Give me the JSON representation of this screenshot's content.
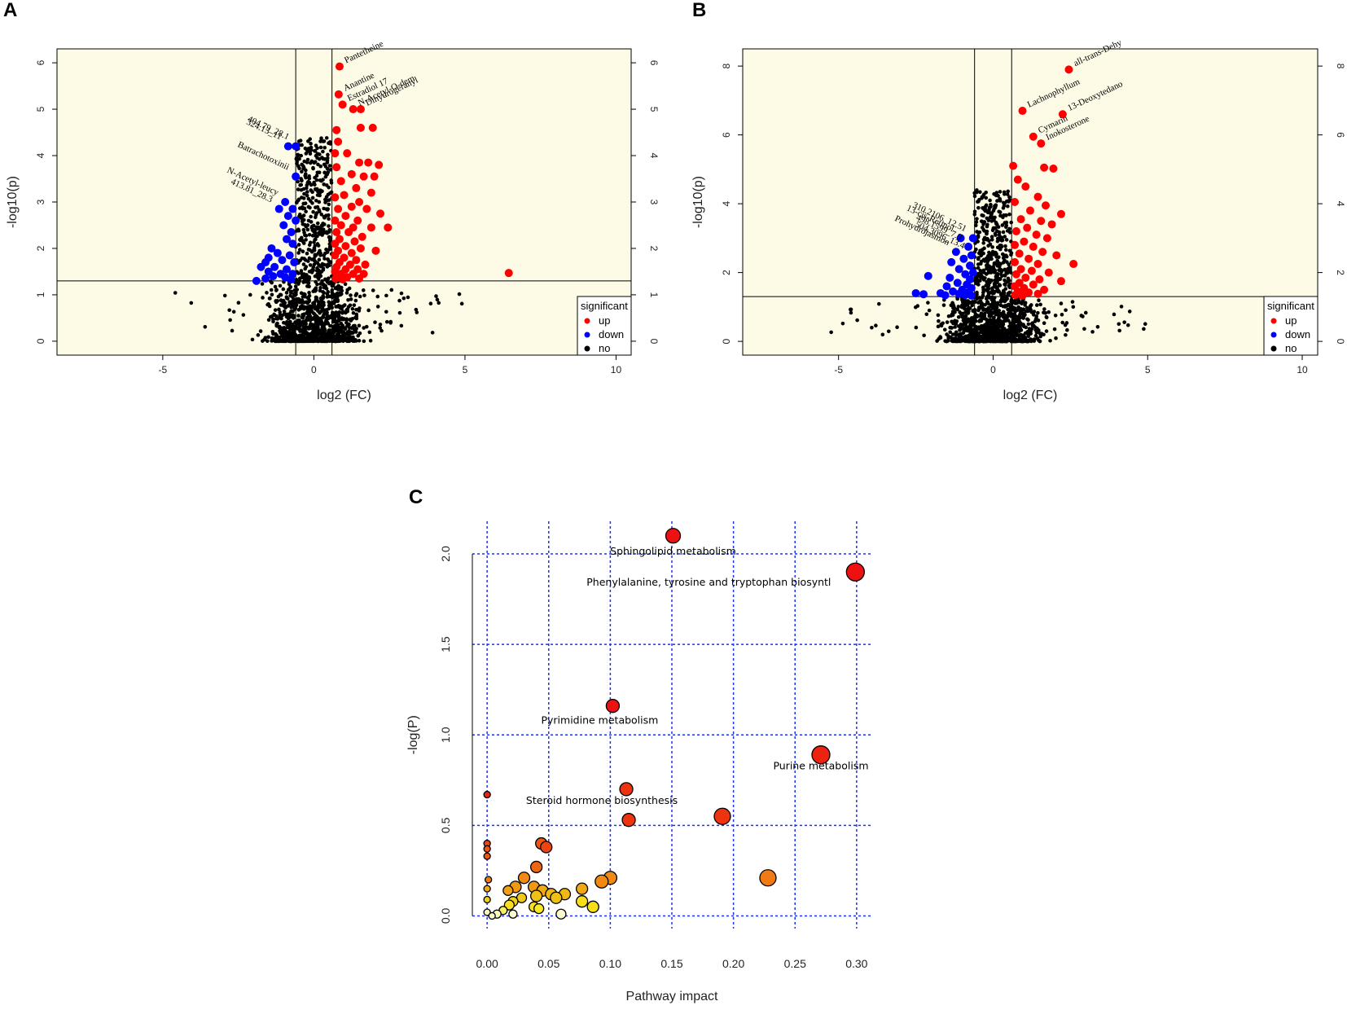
{
  "chart_data": [
    {
      "panel": "A",
      "type": "scatter",
      "xlabel": "log2 (FC)",
      "ylabel": "-log10(p)",
      "xlim": [
        -8.5,
        10.5
      ],
      "ylim": [
        -0.3,
        6.3
      ],
      "xticks": [
        -5,
        0,
        5,
        10
      ],
      "yticks": [
        0,
        1,
        2,
        3,
        4,
        5,
        6
      ],
      "threshold_x": [
        -0.6,
        0.6
      ],
      "threshold_y": 1.3,
      "background": "#fdfbe6",
      "legend": {
        "title": "significant",
        "entries": [
          {
            "label": "up",
            "color": "#ff0000"
          },
          {
            "label": "down",
            "color": "#0000ff"
          },
          {
            "label": "no",
            "color": "#000000"
          }
        ]
      },
      "up_points": [
        [
          0.85,
          5.92
        ],
        [
          0.82,
          5.32
        ],
        [
          0.95,
          5.1
        ],
        [
          1.3,
          5.0
        ],
        [
          1.55,
          5.0
        ],
        [
          1.55,
          4.6
        ],
        [
          1.95,
          4.6
        ],
        [
          0.75,
          4.55
        ],
        [
          0.8,
          4.3
        ],
        [
          0.7,
          4.05
        ],
        [
          1.1,
          4.05
        ],
        [
          1.5,
          3.85
        ],
        [
          1.8,
          3.85
        ],
        [
          2.15,
          3.8
        ],
        [
          0.75,
          3.75
        ],
        [
          1.25,
          3.6
        ],
        [
          1.65,
          3.55
        ],
        [
          2.0,
          3.55
        ],
        [
          0.9,
          3.45
        ],
        [
          1.4,
          3.3
        ],
        [
          1.9,
          3.2
        ],
        [
          1.0,
          3.15
        ],
        [
          0.7,
          3.1
        ],
        [
          1.5,
          3.0
        ],
        [
          1.25,
          2.9
        ],
        [
          0.8,
          2.85
        ],
        [
          1.75,
          2.85
        ],
        [
          2.2,
          2.75
        ],
        [
          1.05,
          2.7
        ],
        [
          0.7,
          2.6
        ],
        [
          1.45,
          2.6
        ],
        [
          0.9,
          2.5
        ],
        [
          1.3,
          2.45
        ],
        [
          1.9,
          2.45
        ],
        [
          2.45,
          2.45
        ],
        [
          0.75,
          2.35
        ],
        [
          1.15,
          2.35
        ],
        [
          1.6,
          2.25
        ],
        [
          0.85,
          2.2
        ],
        [
          1.35,
          2.15
        ],
        [
          0.7,
          2.1
        ],
        [
          1.05,
          2.05
        ],
        [
          1.55,
          2.0
        ],
        [
          2.05,
          1.95
        ],
        [
          0.8,
          1.95
        ],
        [
          1.25,
          1.9
        ],
        [
          0.7,
          1.85
        ],
        [
          1.0,
          1.8
        ],
        [
          1.4,
          1.75
        ],
        [
          0.85,
          1.7
        ],
        [
          1.2,
          1.65
        ],
        [
          1.7,
          1.65
        ],
        [
          0.75,
          1.6
        ],
        [
          1.05,
          1.55
        ],
        [
          1.45,
          1.55
        ],
        [
          0.7,
          1.5
        ],
        [
          0.9,
          1.45
        ],
        [
          1.3,
          1.45
        ],
        [
          1.65,
          1.45
        ],
        [
          0.8,
          1.4
        ],
        [
          1.1,
          1.38
        ],
        [
          1.5,
          1.35
        ],
        [
          0.72,
          1.35
        ],
        [
          0.95,
          1.33
        ],
        [
          6.45,
          1.47
        ]
      ],
      "down_points": [
        [
          -0.6,
          4.2
        ],
        [
          -0.85,
          4.2
        ],
        [
          -0.6,
          3.55
        ],
        [
          -0.95,
          3.0
        ],
        [
          -1.15,
          2.85
        ],
        [
          -0.7,
          2.85
        ],
        [
          -0.85,
          2.7
        ],
        [
          -0.6,
          2.6
        ],
        [
          -1.0,
          2.5
        ],
        [
          -0.75,
          2.35
        ],
        [
          -0.9,
          2.2
        ],
        [
          -1.4,
          2.0
        ],
        [
          -0.7,
          2.1
        ],
        [
          -1.2,
          1.9
        ],
        [
          -1.5,
          1.8
        ],
        [
          -0.8,
          1.85
        ],
        [
          -1.6,
          1.7
        ],
        [
          -1.05,
          1.75
        ],
        [
          -0.65,
          1.7
        ],
        [
          -1.3,
          1.6
        ],
        [
          -1.75,
          1.6
        ],
        [
          -0.9,
          1.55
        ],
        [
          -1.5,
          1.5
        ],
        [
          -1.1,
          1.45
        ],
        [
          -0.7,
          1.45
        ],
        [
          -1.35,
          1.4
        ],
        [
          -0.95,
          1.38
        ],
        [
          -1.9,
          1.3
        ],
        [
          -1.6,
          1.35
        ],
        [
          -0.75,
          1.33
        ]
      ],
      "labels": [
        {
          "text": "Pantetheine",
          "x": 0.85,
          "y": 5.92,
          "color": "up"
        },
        {
          "text": "Anantine",
          "x": 0.82,
          "y": 5.32,
          "color": "up"
        },
        {
          "text": "Estradiol 17",
          "x": 0.95,
          "y": 5.1,
          "color": "up"
        },
        {
          "text": "N-Acetyl-O-dem",
          "x": 1.3,
          "y": 5.0,
          "color": "up"
        },
        {
          "text": "Dihydrogeranyl",
          "x": 1.55,
          "y": 5.0,
          "color": "up"
        },
        {
          "text": "404.79_28.1",
          "x": -0.6,
          "y": 4.2,
          "color": "down"
        },
        {
          "text": "324.13_11",
          "x": -0.85,
          "y": 4.2,
          "color": "down"
        },
        {
          "text": "Batrachotoxinii",
          "x": -0.6,
          "y": 3.55,
          "color": "down"
        },
        {
          "text": "N-Acetyl-leucy",
          "x": -0.95,
          "y": 3.0,
          "color": "down"
        },
        {
          "text": "413.81_28.3",
          "x": -1.15,
          "y": 2.85,
          "color": "down"
        }
      ]
    },
    {
      "panel": "B",
      "type": "scatter",
      "xlabel": "log2 (FC)",
      "ylabel": "-log10(p)",
      "xlim": [
        -8.1,
        10.5
      ],
      "ylim": [
        -0.4,
        8.5
      ],
      "xticks": [
        -5,
        0,
        5,
        10
      ],
      "yticks": [
        0,
        2,
        4,
        6,
        8
      ],
      "threshold_x": [
        -0.6,
        0.6
      ],
      "threshold_y": 1.3,
      "background": "#fdfbe6",
      "legend": {
        "title": "significant",
        "entries": [
          {
            "label": "up",
            "color": "#ff0000"
          },
          {
            "label": "down",
            "color": "#0000ff"
          },
          {
            "label": "no",
            "color": "#000000"
          }
        ]
      },
      "up_points": [
        [
          2.45,
          7.9
        ],
        [
          0.95,
          6.7
        ],
        [
          2.25,
          6.6
        ],
        [
          1.3,
          5.95
        ],
        [
          1.55,
          5.75
        ],
        [
          0.65,
          5.1
        ],
        [
          1.65,
          5.05
        ],
        [
          1.95,
          5.02
        ],
        [
          0.8,
          4.7
        ],
        [
          1.05,
          4.5
        ],
        [
          1.45,
          4.2
        ],
        [
          0.7,
          4.05
        ],
        [
          1.7,
          3.95
        ],
        [
          2.2,
          3.7
        ],
        [
          1.2,
          3.8
        ],
        [
          0.9,
          3.55
        ],
        [
          1.55,
          3.5
        ],
        [
          1.9,
          3.4
        ],
        [
          1.1,
          3.3
        ],
        [
          0.75,
          3.2
        ],
        [
          1.4,
          3.1
        ],
        [
          1.75,
          3.0
        ],
        [
          1.0,
          2.9
        ],
        [
          0.7,
          2.8
        ],
        [
          1.3,
          2.75
        ],
        [
          1.6,
          2.6
        ],
        [
          0.85,
          2.55
        ],
        [
          2.05,
          2.5
        ],
        [
          1.15,
          2.4
        ],
        [
          0.7,
          2.3
        ],
        [
          1.45,
          2.25
        ],
        [
          2.6,
          2.25
        ],
        [
          0.9,
          2.1
        ],
        [
          1.25,
          2.05
        ],
        [
          1.8,
          2.0
        ],
        [
          0.75,
          1.95
        ],
        [
          1.05,
          1.85
        ],
        [
          1.5,
          1.8
        ],
        [
          2.2,
          1.75
        ],
        [
          0.85,
          1.7
        ],
        [
          1.3,
          1.65
        ],
        [
          0.7,
          1.6
        ],
        [
          1.0,
          1.55
        ],
        [
          1.65,
          1.5
        ],
        [
          0.8,
          1.45
        ],
        [
          1.15,
          1.42
        ],
        [
          1.45,
          1.38
        ],
        [
          0.72,
          1.35
        ],
        [
          0.95,
          1.33
        ]
      ],
      "down_points": [
        [
          -0.65,
          3.0
        ],
        [
          -1.05,
          3.0
        ],
        [
          -0.8,
          2.75
        ],
        [
          -1.2,
          2.6
        ],
        [
          -0.7,
          2.5
        ],
        [
          -0.95,
          2.4
        ],
        [
          -1.35,
          2.3
        ],
        [
          -0.75,
          2.2
        ],
        [
          -1.1,
          2.1
        ],
        [
          -0.65,
          2.0
        ],
        [
          -0.9,
          1.95
        ],
        [
          -1.4,
          1.85
        ],
        [
          -0.75,
          1.8
        ],
        [
          -1.15,
          1.7
        ],
        [
          -0.85,
          1.65
        ],
        [
          -1.5,
          1.6
        ],
        [
          -2.1,
          1.9
        ],
        [
          -0.7,
          1.55
        ],
        [
          -1.0,
          1.5
        ],
        [
          -1.3,
          1.45
        ],
        [
          -0.8,
          1.42
        ],
        [
          -1.7,
          1.4
        ],
        [
          -1.1,
          1.38
        ],
        [
          -2.5,
          1.4
        ],
        [
          -2.25,
          1.37
        ],
        [
          -0.9,
          1.35
        ],
        [
          -1.55,
          1.34
        ],
        [
          -0.7,
          1.33
        ]
      ],
      "labels": [
        {
          "text": "all-trans-Dehy",
          "x": 2.45,
          "y": 7.9,
          "color": "up"
        },
        {
          "text": "Lachnophyllum",
          "x": 0.95,
          "y": 6.7,
          "color": "up"
        },
        {
          "text": "13-Deoxytedano",
          "x": 2.25,
          "y": 6.6,
          "color": "up"
        },
        {
          "text": "Cymarin",
          "x": 1.3,
          "y": 5.95,
          "color": "up"
        },
        {
          "text": "Inokosterone",
          "x": 1.55,
          "y": 5.75,
          "color": "up"
        },
        {
          "text": "310.2106_12.51",
          "x": -0.65,
          "y": 3.0,
          "color": "down"
        },
        {
          "text": "13-cis-Retinol",
          "x": -1.05,
          "y": 3.0,
          "color": "down"
        },
        {
          "text": "498.1599_7.9",
          "x": -0.8,
          "y": 2.75,
          "color": "down"
        },
        {
          "text": "Prohydrojasmon",
          "x": -1.2,
          "y": 2.6,
          "color": "down"
        },
        {
          "text": "504.3096_13.4",
          "x": -0.7,
          "y": 2.5,
          "color": "down"
        }
      ]
    },
    {
      "panel": "C",
      "type": "scatter",
      "title": "",
      "xlabel": "Pathway impact",
      "ylabel": "-log(P)",
      "xlim": [
        -0.012,
        0.312
      ],
      "ylim": [
        -0.07,
        2.18
      ],
      "xticks": [
        "0.00",
        "0.05",
        "0.10",
        "0.15",
        "0.20",
        "0.25",
        "0.30"
      ],
      "yticks": [
        "0.0",
        "0.5",
        "1.0",
        "1.5",
        "2.0"
      ],
      "points": [
        {
          "x": 0.151,
          "y": 2.1,
          "r": 9,
          "color": "#ee1111",
          "label": "Sphingolipid metabolism"
        },
        {
          "x": 0.299,
          "y": 1.9,
          "r": 11,
          "color": "#ee1111",
          "label": "Phenylalanine, tyrosine and tryptophan biosyntl"
        },
        {
          "x": 0.102,
          "y": 1.16,
          "r": 8,
          "color": "#ee1111",
          "label": "Pyrimidine metabolism"
        },
        {
          "x": 0.271,
          "y": 0.89,
          "r": 11,
          "color": "#ee2211",
          "label": "Purine metabolism"
        },
        {
          "x": 0.113,
          "y": 0.7,
          "r": 8,
          "color": "#ee3311",
          "label": "Steroid hormone biosynthesis"
        },
        {
          "x": 0.191,
          "y": 0.55,
          "r": 10,
          "color": "#ee3311"
        },
        {
          "x": 0.115,
          "y": 0.53,
          "r": 8,
          "color": "#ee3311"
        },
        {
          "x": 0.0,
          "y": 0.67,
          "r": 4,
          "color": "#ee2211"
        },
        {
          "x": 0.0,
          "y": 0.4,
          "r": 4,
          "color": "#ee4411"
        },
        {
          "x": 0.0,
          "y": 0.37,
          "r": 4,
          "color": "#ee5511"
        },
        {
          "x": 0.0,
          "y": 0.33,
          "r": 4,
          "color": "#ee5511"
        },
        {
          "x": 0.044,
          "y": 0.4,
          "r": 7,
          "color": "#ee5511"
        },
        {
          "x": 0.048,
          "y": 0.38,
          "r": 7,
          "color": "#ee4411"
        },
        {
          "x": 0.04,
          "y": 0.27,
          "r": 7,
          "color": "#ee6611"
        },
        {
          "x": 0.228,
          "y": 0.21,
          "r": 10,
          "color": "#f07a14"
        },
        {
          "x": 0.001,
          "y": 0.2,
          "r": 4,
          "color": "#f07a14"
        },
        {
          "x": 0.03,
          "y": 0.21,
          "r": 7,
          "color": "#f08a14"
        },
        {
          "x": 0.1,
          "y": 0.21,
          "r": 8,
          "color": "#f08a14"
        },
        {
          "x": 0.093,
          "y": 0.19,
          "r": 8,
          "color": "#f08a14"
        },
        {
          "x": 0.023,
          "y": 0.16,
          "r": 7,
          "color": "#f09a14"
        },
        {
          "x": 0.038,
          "y": 0.16,
          "r": 7,
          "color": "#f09a14"
        },
        {
          "x": 0.017,
          "y": 0.14,
          "r": 6,
          "color": "#f0a014"
        },
        {
          "x": 0.045,
          "y": 0.14,
          "r": 7,
          "color": "#f0a814"
        },
        {
          "x": 0.077,
          "y": 0.15,
          "r": 7,
          "color": "#f0a814"
        },
        {
          "x": 0.0,
          "y": 0.15,
          "r": 4,
          "color": "#f0a814"
        },
        {
          "x": 0.052,
          "y": 0.12,
          "r": 7,
          "color": "#f0b814"
        },
        {
          "x": 0.063,
          "y": 0.12,
          "r": 7,
          "color": "#f0b814"
        },
        {
          "x": 0.04,
          "y": 0.11,
          "r": 7,
          "color": "#f0c014"
        },
        {
          "x": 0.056,
          "y": 0.1,
          "r": 7,
          "color": "#f0c014"
        },
        {
          "x": 0.028,
          "y": 0.1,
          "r": 6,
          "color": "#f0c818"
        },
        {
          "x": 0.021,
          "y": 0.08,
          "r": 6,
          "color": "#f0d018"
        },
        {
          "x": 0.0,
          "y": 0.09,
          "r": 4,
          "color": "#f0d018"
        },
        {
          "x": 0.077,
          "y": 0.08,
          "r": 7,
          "color": "#f8e018"
        },
        {
          "x": 0.018,
          "y": 0.06,
          "r": 6,
          "color": "#f8e020"
        },
        {
          "x": 0.086,
          "y": 0.05,
          "r": 7,
          "color": "#f8e018"
        },
        {
          "x": 0.038,
          "y": 0.05,
          "r": 6,
          "color": "#f8e018"
        },
        {
          "x": 0.042,
          "y": 0.04,
          "r": 6,
          "color": "#f8e820"
        },
        {
          "x": 0.013,
          "y": 0.03,
          "r": 5,
          "color": "#f8f060"
        },
        {
          "x": 0.0,
          "y": 0.02,
          "r": 4,
          "color": "#fafac0"
        },
        {
          "x": 0.008,
          "y": 0.01,
          "r": 5,
          "color": "#fafac0"
        },
        {
          "x": 0.021,
          "y": 0.01,
          "r": 5,
          "color": "#fafad0"
        },
        {
          "x": 0.06,
          "y": 0.01,
          "r": 6,
          "color": "#fafad0"
        },
        {
          "x": 0.004,
          "y": 0.0,
          "r": 4,
          "color": "#fafad0"
        }
      ]
    }
  ]
}
